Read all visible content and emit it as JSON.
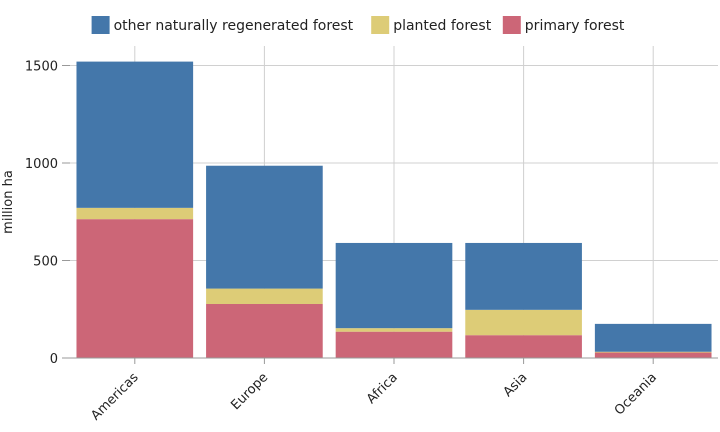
{
  "chart_data": {
    "type": "bar",
    "stacked": true,
    "categories": [
      "Americas",
      "Europe",
      "Africa",
      "Asia",
      "Oceania"
    ],
    "series": [
      {
        "name": "primary forest",
        "color": "#cc6677",
        "values": [
          712,
          277,
          135,
          117,
          28
        ]
      },
      {
        "name": "planted forest",
        "color": "#ddcc77",
        "values": [
          58,
          79,
          18,
          130,
          4
        ]
      },
      {
        "name": "other naturally regenerated forest",
        "color": "#4477aa",
        "values": [
          750,
          630,
          437,
          343,
          143
        ]
      }
    ],
    "legend_order": [
      2,
      1,
      0
    ],
    "legend_position": "top",
    "ylabel": "million ha",
    "xlabel": "",
    "ylim": [
      0,
      1600
    ],
    "yticks": [
      0,
      500,
      1000,
      1500
    ],
    "grid": true
  }
}
